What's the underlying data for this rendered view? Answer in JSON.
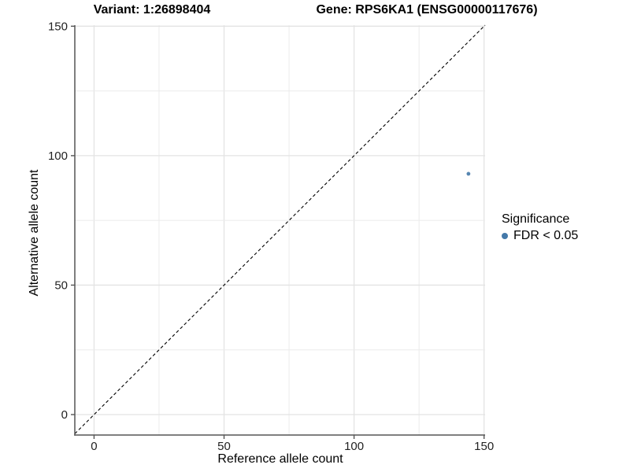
{
  "chart_data": {
    "type": "scatter",
    "title_left": "Variant: 1:26898404",
    "title_right": "Gene: RPS6KA1 (ENSG00000117676)",
    "xlabel": "Reference allele count",
    "ylabel": "Alternative allele count",
    "xlim": [
      -7.4,
      150.4
    ],
    "ylim": [
      -7.9,
      150.4
    ],
    "x_ticks": [
      0,
      50,
      100,
      150
    ],
    "y_ticks": [
      0,
      50,
      100,
      150
    ],
    "grid_step": 25,
    "grid": true,
    "identity_line": {
      "style": "dashed",
      "color": "#000000"
    },
    "series": [
      {
        "name": "FDR < 0.05",
        "color": "#4479a9",
        "points": [
          {
            "x": 144,
            "y": 93
          }
        ],
        "point_radius": 2.4
      }
    ],
    "legend": {
      "title": "Significance",
      "position": "right",
      "items": [
        {
          "label": "FDR < 0.05",
          "color": "#4479a9"
        }
      ]
    },
    "colors": {
      "background": "#ffffff",
      "grid_major": "#e3e3e3",
      "grid_minor": "#ebebeb",
      "axis_line": "#555555",
      "tick_text": "#222222",
      "point": "#4479a9"
    }
  }
}
